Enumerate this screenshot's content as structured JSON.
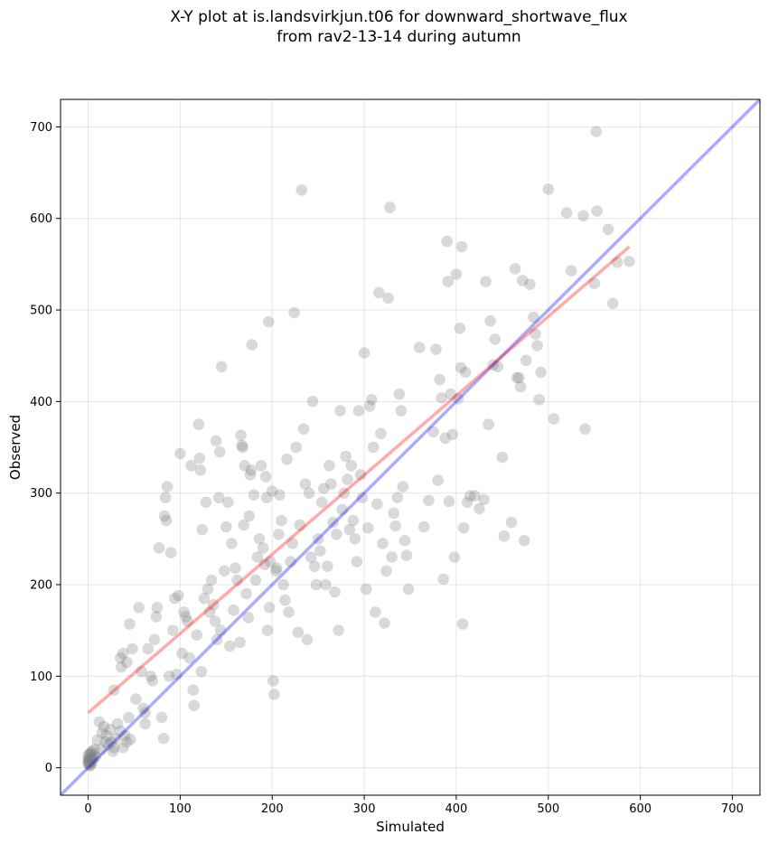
{
  "chart_data": {
    "type": "scatter",
    "title_line1": "X-Y plot at is.landsvirkjun.t06 for downward_shortwave_flux",
    "title_line2": "from rav2-13-14 during autumn",
    "xlabel": "Simulated",
    "ylabel": "Observed",
    "xlim": [
      -30,
      730
    ],
    "ylim": [
      -30,
      730
    ],
    "xticks": [
      0,
      100,
      200,
      300,
      400,
      500,
      600,
      700
    ],
    "yticks": [
      0,
      100,
      200,
      300,
      400,
      500,
      600,
      700
    ],
    "grid": true,
    "colors": {
      "points": "#808080",
      "one_to_one": "#0000ff",
      "fit": "#ff0000"
    },
    "one_to_one_line": {
      "x": [
        -30,
        730
      ],
      "y": [
        -30,
        730
      ]
    },
    "fit_line": {
      "x": [
        0,
        588
      ],
      "y": [
        60,
        569
      ]
    },
    "points": [
      [
        0,
        4
      ],
      [
        0,
        6
      ],
      [
        1,
        8
      ],
      [
        2,
        5
      ],
      [
        3,
        10
      ],
      [
        1,
        12
      ],
      [
        2,
        15
      ],
      [
        4,
        9
      ],
      [
        5,
        7
      ],
      [
        6,
        14
      ],
      [
        3,
        3
      ],
      [
        8,
        12
      ],
      [
        0,
        9
      ],
      [
        2,
        2
      ],
      [
        4,
        18
      ],
      [
        7,
        20
      ],
      [
        1,
        6
      ],
      [
        5,
        11
      ],
      [
        0,
        14
      ],
      [
        3,
        16
      ],
      [
        10,
        30
      ],
      [
        12,
        50
      ],
      [
        14,
        20
      ],
      [
        17,
        45
      ],
      [
        20,
        35
      ],
      [
        22,
        25
      ],
      [
        25,
        28
      ],
      [
        27,
        18
      ],
      [
        30,
        32
      ],
      [
        32,
        48
      ],
      [
        15,
        38
      ],
      [
        19,
        28
      ],
      [
        24,
        42
      ],
      [
        28,
        22
      ],
      [
        35,
        40
      ],
      [
        38,
        22
      ],
      [
        40,
        35
      ],
      [
        42,
        28
      ],
      [
        44,
        55
      ],
      [
        46,
        31
      ],
      [
        28,
        85
      ],
      [
        35,
        120
      ],
      [
        38,
        125
      ],
      [
        36,
        110
      ],
      [
        42,
        115
      ],
      [
        45,
        157
      ],
      [
        48,
        130
      ],
      [
        52,
        75
      ],
      [
        55,
        175
      ],
      [
        58,
        105
      ],
      [
        60,
        65
      ],
      [
        62,
        60
      ],
      [
        62,
        48
      ],
      [
        65,
        130
      ],
      [
        68,
        100
      ],
      [
        70,
        95
      ],
      [
        72,
        140
      ],
      [
        74,
        165
      ],
      [
        75,
        175
      ],
      [
        77,
        240
      ],
      [
        80,
        55
      ],
      [
        82,
        32
      ],
      [
        83,
        275
      ],
      [
        84,
        295
      ],
      [
        85,
        270
      ],
      [
        86,
        307
      ],
      [
        88,
        100
      ],
      [
        90,
        235
      ],
      [
        92,
        150
      ],
      [
        94,
        185
      ],
      [
        96,
        102
      ],
      [
        98,
        188
      ],
      [
        100,
        343
      ],
      [
        102,
        125
      ],
      [
        104,
        170
      ],
      [
        106,
        165
      ],
      [
        108,
        160
      ],
      [
        110,
        120
      ],
      [
        112,
        330
      ],
      [
        114,
        85
      ],
      [
        115,
        68
      ],
      [
        118,
        145
      ],
      [
        120,
        375
      ],
      [
        121,
        338
      ],
      [
        122,
        325
      ],
      [
        123,
        105
      ],
      [
        124,
        260
      ],
      [
        126,
        185
      ],
      [
        128,
        290
      ],
      [
        130,
        195
      ],
      [
        132,
        170
      ],
      [
        134,
        205
      ],
      [
        136,
        178
      ],
      [
        138,
        160
      ],
      [
        139,
        357
      ],
      [
        140,
        140
      ],
      [
        142,
        295
      ],
      [
        143,
        345
      ],
      [
        144,
        150
      ],
      [
        145,
        438
      ],
      [
        148,
        215
      ],
      [
        150,
        263
      ],
      [
        152,
        290
      ],
      [
        154,
        133
      ],
      [
        156,
        245
      ],
      [
        158,
        172
      ],
      [
        160,
        218
      ],
      [
        162,
        205
      ],
      [
        165,
        137
      ],
      [
        166,
        363
      ],
      [
        167,
        352
      ],
      [
        168,
        350
      ],
      [
        169,
        265
      ],
      [
        170,
        330
      ],
      [
        172,
        190
      ],
      [
        174,
        164
      ],
      [
        175,
        275
      ],
      [
        176,
        320
      ],
      [
        177,
        325
      ],
      [
        178,
        462
      ],
      [
        180,
        298
      ],
      [
        182,
        205
      ],
      [
        184,
        230
      ],
      [
        186,
        250
      ],
      [
        188,
        330
      ],
      [
        190,
        240
      ],
      [
        192,
        222
      ],
      [
        193,
        318
      ],
      [
        194,
        295
      ],
      [
        195,
        150
      ],
      [
        196,
        487
      ],
      [
        197,
        175
      ],
      [
        198,
        225
      ],
      [
        200,
        302
      ],
      [
        201,
        95
      ],
      [
        202,
        80
      ],
      [
        204,
        215
      ],
      [
        205,
        218
      ],
      [
        207,
        255
      ],
      [
        208,
        298
      ],
      [
        210,
        270
      ],
      [
        212,
        200
      ],
      [
        214,
        183
      ],
      [
        216,
        337
      ],
      [
        218,
        170
      ],
      [
        220,
        225
      ],
      [
        222,
        245
      ],
      [
        224,
        497
      ],
      [
        226,
        350
      ],
      [
        228,
        148
      ],
      [
        230,
        265
      ],
      [
        232,
        631
      ],
      [
        234,
        370
      ],
      [
        236,
        310
      ],
      [
        238,
        140
      ],
      [
        240,
        300
      ],
      [
        242,
        230
      ],
      [
        244,
        400
      ],
      [
        246,
        220
      ],
      [
        248,
        200
      ],
      [
        250,
        250
      ],
      [
        252,
        237
      ],
      [
        254,
        290
      ],
      [
        256,
        305
      ],
      [
        258,
        200
      ],
      [
        260,
        220
      ],
      [
        262,
        330
      ],
      [
        264,
        310
      ],
      [
        266,
        268
      ],
      [
        268,
        192
      ],
      [
        270,
        255
      ],
      [
        272,
        150
      ],
      [
        274,
        390
      ],
      [
        276,
        282
      ],
      [
        278,
        300
      ],
      [
        280,
        340
      ],
      [
        282,
        315
      ],
      [
        284,
        260
      ],
      [
        286,
        330
      ],
      [
        288,
        270
      ],
      [
        290,
        250
      ],
      [
        292,
        225
      ],
      [
        294,
        390
      ],
      [
        296,
        320
      ],
      [
        298,
        295
      ],
      [
        300,
        453
      ],
      [
        302,
        195
      ],
      [
        304,
        262
      ],
      [
        306,
        395
      ],
      [
        308,
        402
      ],
      [
        310,
        350
      ],
      [
        312,
        170
      ],
      [
        314,
        288
      ],
      [
        316,
        519
      ],
      [
        318,
        365
      ],
      [
        320,
        245
      ],
      [
        322,
        158
      ],
      [
        324,
        215
      ],
      [
        326,
        513
      ],
      [
        328,
        612
      ],
      [
        330,
        230
      ],
      [
        332,
        278
      ],
      [
        334,
        264
      ],
      [
        336,
        295
      ],
      [
        338,
        408
      ],
      [
        340,
        390
      ],
      [
        342,
        307
      ],
      [
        344,
        248
      ],
      [
        346,
        232
      ],
      [
        348,
        195
      ],
      [
        360,
        459
      ],
      [
        365,
        263
      ],
      [
        370,
        292
      ],
      [
        375,
        367
      ],
      [
        378,
        457
      ],
      [
        380,
        314
      ],
      [
        382,
        424
      ],
      [
        384,
        404
      ],
      [
        386,
        206
      ],
      [
        388,
        360
      ],
      [
        390,
        575
      ],
      [
        391,
        531
      ],
      [
        392,
        291
      ],
      [
        394,
        408
      ],
      [
        396,
        364
      ],
      [
        398,
        230
      ],
      [
        400,
        539
      ],
      [
        402,
        403
      ],
      [
        404,
        480
      ],
      [
        405,
        437
      ],
      [
        406,
        569
      ],
      [
        407,
        157
      ],
      [
        408,
        262
      ],
      [
        410,
        432
      ],
      [
        412,
        290
      ],
      [
        415,
        297
      ],
      [
        420,
        297
      ],
      [
        425,
        283
      ],
      [
        430,
        293
      ],
      [
        432,
        531
      ],
      [
        435,
        375
      ],
      [
        437,
        488
      ],
      [
        440,
        440
      ],
      [
        442,
        468
      ],
      [
        445,
        438
      ],
      [
        450,
        339
      ],
      [
        452,
        253
      ],
      [
        460,
        268
      ],
      [
        464,
        545
      ],
      [
        466,
        426
      ],
      [
        468,
        426
      ],
      [
        470,
        416
      ],
      [
        472,
        532
      ],
      [
        474,
        248
      ],
      [
        476,
        445
      ],
      [
        480,
        528
      ],
      [
        484,
        492
      ],
      [
        486,
        474
      ],
      [
        488,
        461
      ],
      [
        490,
        402
      ],
      [
        492,
        432
      ],
      [
        500,
        632
      ],
      [
        506,
        381
      ],
      [
        520,
        606
      ],
      [
        525,
        543
      ],
      [
        538,
        603
      ],
      [
        540,
        370
      ],
      [
        550,
        529
      ],
      [
        552,
        695
      ],
      [
        553,
        608
      ],
      [
        565,
        588
      ],
      [
        570,
        507
      ],
      [
        575,
        552
      ],
      [
        588,
        553
      ]
    ]
  }
}
